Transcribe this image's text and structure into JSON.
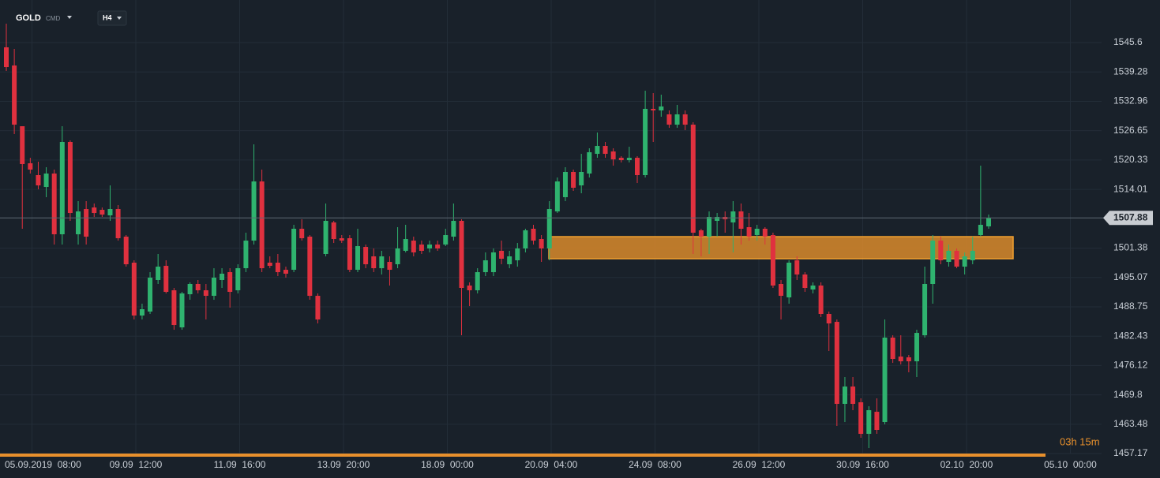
{
  "chart_data": {
    "type": "candlestick",
    "symbol": "GOLD",
    "symbol_type": "CMD",
    "timeframe": "H4",
    "countdown": "03h 15m",
    "up_color": "#2fb36f",
    "down_color": "#e0313f",
    "grid": true,
    "ylim": [
      1456.67,
      1554.77
    ],
    "yticks": [
      1457.17,
      1463.48,
      1469.8,
      1476.12,
      1482.43,
      1488.75,
      1495.07,
      1501.38,
      1514.01,
      1520.33,
      1526.65,
      1532.96,
      1539.28,
      1545.6
    ],
    "xticks": [
      "05.09.2019  08:00",
      "09.09  12:00",
      "11.09  16:00",
      "13.09  20:00",
      "18.09  00:00",
      "20.09  04:00",
      "24.09  08:00",
      "26.09  12:00",
      "30.09  16:00",
      "02.10  20:00",
      "05.10  00:00"
    ],
    "last_price": 1507.88,
    "zone": {
      "high": 1503.85,
      "low": 1499.1,
      "color": "#d98a2b"
    },
    "ohlc": [
      [
        1544.59,
        1549.68,
        1539.49,
        1540.34
      ],
      [
        1540.68,
        1544.25,
        1525.92,
        1527.95
      ],
      [
        1527.61,
        1527.61,
        1505.55,
        1519.47
      ],
      [
        1519.64,
        1520.82,
        1517.43,
        1518.28
      ],
      [
        1517.09,
        1519.98,
        1514.03,
        1514.88
      ],
      [
        1514.54,
        1518.79,
        1512.34,
        1517.43
      ],
      [
        1517.43,
        1518.28,
        1502.15,
        1504.36
      ],
      [
        1504.36,
        1527.61,
        1502.15,
        1524.22
      ],
      [
        1524.22,
        1524.56,
        1507.25,
        1508.94
      ],
      [
        1504.36,
        1511.49,
        1502.15,
        1509.28
      ],
      [
        1509.79,
        1511.49,
        1502.15,
        1503.85
      ],
      [
        1510.13,
        1510.98,
        1508.09,
        1508.94
      ],
      [
        1509.62,
        1510.13,
        1508.09,
        1508.6
      ],
      [
        1508.43,
        1514.88,
        1507.25,
        1509.79
      ],
      [
        1509.79,
        1510.64,
        1503.0,
        1503.51
      ],
      [
        1503.85,
        1504.19,
        1497.4,
        1497.91
      ],
      [
        1498.25,
        1498.76,
        1486.03,
        1486.88
      ],
      [
        1486.88,
        1489.42,
        1486.03,
        1488.24
      ],
      [
        1487.73,
        1496.21,
        1487.22,
        1495.03
      ],
      [
        1494.52,
        1500.12,
        1493.67,
        1497.4
      ],
      [
        1497.57,
        1498.76,
        1491.63,
        1491.97
      ],
      [
        1492.31,
        1492.82,
        1483.82,
        1484.84
      ],
      [
        1484.33,
        1491.97,
        1483.82,
        1491.63
      ],
      [
        1491.46,
        1494.01,
        1490.27,
        1493.67
      ],
      [
        1493.67,
        1494.52,
        1491.63,
        1492.31
      ],
      [
        1492.31,
        1493.67,
        1486.03,
        1491.12
      ],
      [
        1491.12,
        1497.06,
        1490.27,
        1495.03
      ],
      [
        1494.52,
        1497.06,
        1492.82,
        1495.88
      ],
      [
        1496.21,
        1497.06,
        1488.58,
        1491.97
      ],
      [
        1492.31,
        1497.91,
        1491.63,
        1497.06
      ],
      [
        1497.06,
        1504.7,
        1496.21,
        1503.0
      ],
      [
        1503.0,
        1523.71,
        1502.15,
        1515.73
      ],
      [
        1515.73,
        1518.28,
        1496.21,
        1497.06
      ],
      [
        1498.25,
        1499.61,
        1497.06,
        1497.57
      ],
      [
        1498.25,
        1500.12,
        1495.36,
        1496.21
      ],
      [
        1496.72,
        1497.4,
        1495.03,
        1495.88
      ],
      [
        1496.72,
        1506.4,
        1496.21,
        1505.55
      ],
      [
        1505.55,
        1507.59,
        1503.0,
        1503.51
      ],
      [
        1503.85,
        1504.19,
        1490.27,
        1491.12
      ],
      [
        1491.12,
        1491.63,
        1485.18,
        1486.03
      ],
      [
        1500.12,
        1510.98,
        1499.61,
        1507.25
      ],
      [
        1506.91,
        1507.25,
        1502.49,
        1503.34
      ],
      [
        1503.51,
        1504.19,
        1502.49,
        1503.0
      ],
      [
        1503.51,
        1504.19,
        1496.21,
        1496.72
      ],
      [
        1496.72,
        1505.55,
        1496.21,
        1501.81
      ],
      [
        1501.64,
        1502.15,
        1497.06,
        1497.91
      ],
      [
        1499.61,
        1501.31,
        1496.21,
        1497.06
      ],
      [
        1497.06,
        1500.8,
        1495.71,
        1499.61
      ],
      [
        1498.42,
        1499.61,
        1493.33,
        1496.72
      ],
      [
        1497.91,
        1505.89,
        1497.06,
        1501.31
      ],
      [
        1500.8,
        1506.4,
        1500.46,
        1503.34
      ],
      [
        1503.0,
        1503.85,
        1499.61,
        1500.46
      ],
      [
        1502.15,
        1503.0,
        1500.12,
        1500.8
      ],
      [
        1501.31,
        1503.0,
        1500.46,
        1502.15
      ],
      [
        1502.15,
        1503.0,
        1500.8,
        1501.31
      ],
      [
        1502.15,
        1505.55,
        1501.81,
        1504.19
      ],
      [
        1503.85,
        1510.98,
        1503.0,
        1507.25
      ],
      [
        1507.25,
        1507.59,
        1482.63,
        1492.82
      ],
      [
        1493.33,
        1494.01,
        1488.91,
        1492.31
      ],
      [
        1492.31,
        1497.06,
        1491.63,
        1496.21
      ],
      [
        1496.21,
        1500.46,
        1495.36,
        1498.76
      ],
      [
        1496.21,
        1501.31,
        1495.36,
        1500.46
      ],
      [
        1500.8,
        1503.0,
        1497.91,
        1499.1
      ],
      [
        1497.91,
        1500.8,
        1497.06,
        1499.61
      ],
      [
        1498.76,
        1502.49,
        1497.4,
        1501.31
      ],
      [
        1501.31,
        1505.55,
        1500.46,
        1505.21
      ],
      [
        1505.55,
        1506.4,
        1502.15,
        1503.0
      ],
      [
        1503.34,
        1504.19,
        1498.42,
        1501.31
      ],
      [
        1501.31,
        1511.49,
        1498.76,
        1509.79
      ],
      [
        1509.28,
        1516.58,
        1508.94,
        1515.73
      ],
      [
        1512.34,
        1518.79,
        1511.49,
        1517.77
      ],
      [
        1517.77,
        1518.28,
        1513.7,
        1514.37
      ],
      [
        1514.88,
        1521.67,
        1513.19,
        1517.77
      ],
      [
        1517.43,
        1522.86,
        1516.58,
        1522.01
      ],
      [
        1521.67,
        1526.26,
        1520.82,
        1523.37
      ],
      [
        1523.37,
        1524.22,
        1520.82,
        1521.67
      ],
      [
        1522.18,
        1522.86,
        1519.13,
        1520.48
      ],
      [
        1520.82,
        1521.16,
        1519.81,
        1520.31
      ],
      [
        1520.31,
        1523.2,
        1519.81,
        1520.82
      ],
      [
        1520.82,
        1521.16,
        1515.39,
        1517.09
      ],
      [
        1517.09,
        1535.25,
        1516.58,
        1531.35
      ],
      [
        1531.35,
        1534.74,
        1524.22,
        1531.01
      ],
      [
        1531.01,
        1534.4,
        1529.65,
        1531.86
      ],
      [
        1530.16,
        1531.01,
        1527.27,
        1527.95
      ],
      [
        1527.95,
        1532.2,
        1527.27,
        1530.16
      ],
      [
        1530.16,
        1531.01,
        1526.76,
        1527.95
      ],
      [
        1527.95,
        1528.46,
        1500.12,
        1504.7
      ],
      [
        1505.21,
        1505.55,
        1499.61,
        1503.85
      ],
      [
        1503.85,
        1509.28,
        1500.12,
        1508.09
      ],
      [
        1507.25,
        1508.94,
        1503.85,
        1508.09
      ],
      [
        1508.09,
        1509.28,
        1504.7,
        1507.59
      ],
      [
        1506.91,
        1511.49,
        1500.46,
        1509.28
      ],
      [
        1509.28,
        1510.98,
        1502.15,
        1505.55
      ],
      [
        1505.89,
        1508.94,
        1503.0,
        1503.85
      ],
      [
        1504.19,
        1506.4,
        1503.0,
        1505.55
      ],
      [
        1505.55,
        1505.89,
        1502.15,
        1503.85
      ],
      [
        1504.19,
        1504.7,
        1492.82,
        1493.33
      ],
      [
        1493.67,
        1494.52,
        1486.03,
        1491.12
      ],
      [
        1490.78,
        1498.76,
        1489.42,
        1498.25
      ],
      [
        1498.76,
        1499.61,
        1494.52,
        1495.71
      ],
      [
        1495.71,
        1496.21,
        1491.97,
        1492.82
      ],
      [
        1492.48,
        1494.01,
        1491.63,
        1493.33
      ],
      [
        1493.33,
        1494.01,
        1486.54,
        1487.22
      ],
      [
        1487.22,
        1487.73,
        1479.24,
        1485.18
      ],
      [
        1485.52,
        1486.03,
        1463.12,
        1467.87
      ],
      [
        1467.87,
        1473.64,
        1463.96,
        1471.6
      ],
      [
        1471.6,
        1473.64,
        1466.51,
        1467.87
      ],
      [
        1468.21,
        1469.06,
        1460.57,
        1461.42
      ],
      [
        1461.42,
        1467.36,
        1458.36,
        1466.51
      ],
      [
        1466.17,
        1469.06,
        1461.42,
        1462.27
      ],
      [
        1463.96,
        1486.03,
        1463.46,
        1482.13
      ],
      [
        1482.13,
        1482.63,
        1476.69,
        1477.54
      ],
      [
        1478.05,
        1482.63,
        1476.35,
        1477.03
      ],
      [
        1477.88,
        1478.39,
        1474.66,
        1477.03
      ],
      [
        1477.03,
        1483.82,
        1473.64,
        1483.14
      ],
      [
        1482.63,
        1497.4,
        1482.13,
        1493.67
      ],
      [
        1493.67,
        1504.19,
        1489.42,
        1503.0
      ],
      [
        1503.0,
        1503.85,
        1497.91,
        1498.76
      ],
      [
        1498.42,
        1502.15,
        1497.4,
        1500.8
      ],
      [
        1500.8,
        1501.31,
        1497.06,
        1497.4
      ],
      [
        1497.4,
        1500.46,
        1495.71,
        1499.61
      ],
      [
        1498.76,
        1503.85,
        1497.91,
        1500.8
      ],
      [
        1504.19,
        1519.13,
        1503.85,
        1506.4
      ],
      [
        1506.06,
        1508.6,
        1505.55,
        1507.88
      ]
    ]
  }
}
